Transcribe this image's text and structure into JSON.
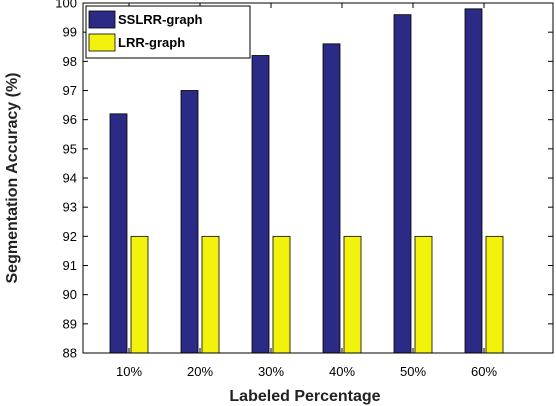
{
  "chart_data": {
    "type": "bar",
    "categories": [
      "10%",
      "20%",
      "30%",
      "40%",
      "50%",
      "60%"
    ],
    "series": [
      {
        "name": "SSLRR-graph",
        "color": "#2b2a84",
        "values": [
          96.2,
          97.0,
          98.2,
          98.6,
          99.6,
          99.8
        ]
      },
      {
        "name": "LRR-graph",
        "color": "#f2f20c",
        "values": [
          92.0,
          92.0,
          92.0,
          92.0,
          92.0,
          92.0
        ]
      }
    ],
    "xlabel": "Labeled Percentage",
    "ylabel": "Segmentation Accuracy (%)",
    "ylim": [
      88,
      100
    ],
    "yticks": [
      88,
      89,
      90,
      91,
      92,
      93,
      94,
      95,
      96,
      97,
      98,
      99,
      100
    ],
    "legend_position": "top-left",
    "grid": false
  }
}
